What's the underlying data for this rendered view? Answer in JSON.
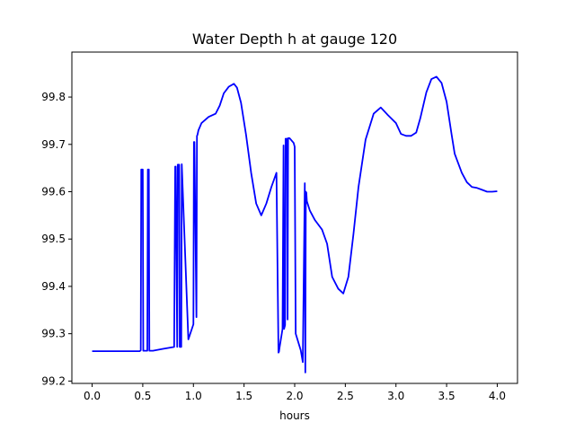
{
  "chart_data": {
    "type": "line",
    "title": "Water Depth h at gauge 120",
    "xlabel": "hours",
    "ylabel": "",
    "xlim": [
      -0.2,
      4.2
    ],
    "ylim": [
      99.195,
      99.895
    ],
    "xticks": [
      0.0,
      0.5,
      1.0,
      1.5,
      2.0,
      2.5,
      3.0,
      3.5,
      4.0
    ],
    "xtick_labels": [
      "0.0",
      "0.5",
      "1.0",
      "1.5",
      "2.0",
      "2.5",
      "3.0",
      "3.5",
      "4.0"
    ],
    "yticks": [
      99.2,
      99.3,
      99.4,
      99.5,
      99.6,
      99.7,
      99.8
    ],
    "ytick_labels": [
      "99.2",
      "99.3",
      "99.4",
      "99.5",
      "99.6",
      "99.7",
      "99.8"
    ],
    "grid": false,
    "line_color": "#0000ff",
    "series": [
      {
        "x": [
          0.0,
          0.47,
          0.48,
          0.485,
          0.5,
          0.505,
          0.545,
          0.55,
          0.56,
          0.565,
          0.6,
          0.7,
          0.81,
          0.82,
          0.825,
          0.84,
          0.845,
          0.86,
          0.865,
          0.88,
          0.885,
          0.95,
          1.0,
          1.005,
          1.01,
          1.03,
          1.035,
          1.04,
          1.05,
          1.08,
          1.15,
          1.22,
          1.26,
          1.3,
          1.35,
          1.4,
          1.43,
          1.47,
          1.52,
          1.57,
          1.62,
          1.67,
          1.72,
          1.77,
          1.82,
          1.84,
          1.845,
          1.85,
          1.88,
          1.89,
          1.895,
          1.905,
          1.91,
          1.925,
          1.93,
          1.935,
          1.95,
          1.99,
          2.0,
          2.01,
          2.06,
          2.08,
          2.1,
          2.105,
          2.11,
          2.115,
          2.12,
          2.15,
          2.2,
          2.27,
          2.32,
          2.37,
          2.43,
          2.48,
          2.53,
          2.58,
          2.63,
          2.7,
          2.78,
          2.85,
          2.92,
          3.0,
          3.05,
          3.1,
          3.15,
          3.2,
          3.24,
          3.3,
          3.35,
          3.4,
          3.45,
          3.5,
          3.55,
          3.58,
          3.65,
          3.7,
          3.75,
          3.8,
          3.85,
          3.9,
          3.95,
          4.0
        ],
        "y": [
          99.263,
          99.263,
          99.265,
          99.647,
          99.647,
          99.264,
          99.264,
          99.647,
          99.647,
          99.264,
          99.264,
          99.268,
          99.272,
          99.653,
          99.653,
          99.272,
          99.657,
          99.657,
          99.272,
          99.272,
          99.658,
          99.288,
          99.32,
          99.705,
          99.705,
          99.335,
          99.718,
          99.72,
          99.73,
          99.745,
          99.758,
          99.765,
          99.782,
          99.808,
          99.822,
          99.828,
          99.82,
          99.788,
          99.72,
          99.64,
          99.575,
          99.55,
          99.575,
          99.61,
          99.64,
          99.26,
          99.262,
          99.27,
          99.31,
          99.698,
          99.31,
          99.318,
          99.712,
          99.712,
          99.33,
          99.713,
          99.713,
          99.703,
          99.695,
          99.3,
          99.265,
          99.24,
          99.618,
          99.218,
          99.6,
          99.598,
          99.58,
          99.56,
          99.54,
          99.52,
          99.49,
          99.42,
          99.395,
          99.385,
          99.42,
          99.51,
          99.61,
          99.71,
          99.765,
          99.778,
          99.762,
          99.745,
          99.722,
          99.718,
          99.718,
          99.725,
          99.755,
          99.81,
          99.838,
          99.843,
          99.83,
          99.79,
          99.72,
          99.68,
          99.64,
          99.62,
          99.61,
          99.608,
          99.604,
          99.6,
          99.6,
          99.601
        ]
      }
    ]
  }
}
